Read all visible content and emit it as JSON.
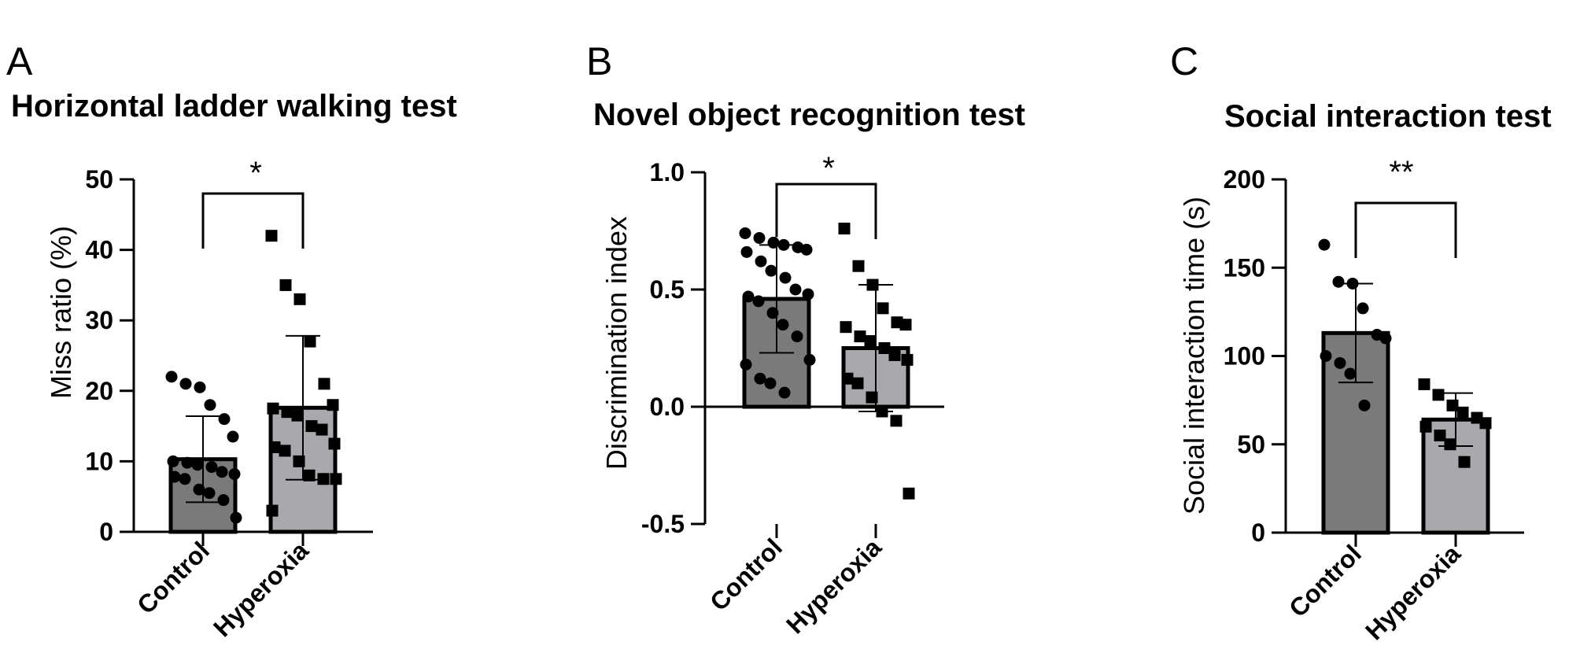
{
  "colors": {
    "control_bar": "#7a7a7a",
    "hyperoxia_bar": "#a8a8ad",
    "ink": "#000000"
  },
  "chart_data": [
    {
      "panel": "A",
      "type": "bar",
      "title": "Horizontal ladder walking test",
      "xlabel": "",
      "ylabel": "Miss ratio (%)",
      "ylim": [
        0,
        50
      ],
      "yticks": [
        0,
        10,
        20,
        30,
        40,
        50
      ],
      "categories": [
        "Control",
        "Hyperoxia"
      ],
      "means": [
        10.3,
        17.6
      ],
      "sd": [
        6.1,
        10.2
      ],
      "marker": [
        "circle",
        "square"
      ],
      "points": [
        [
          22,
          21,
          20.5,
          18,
          16,
          13.5,
          10,
          9.8,
          9.5,
          9.2,
          8.5,
          8.2,
          7.8,
          7.5,
          6,
          5.5,
          4.5,
          2
        ],
        [
          42,
          35,
          33,
          27,
          21,
          18,
          17.5,
          17,
          16.5,
          15,
          14.5,
          12.5,
          12,
          11.5,
          10,
          8,
          7.5,
          7.5,
          3
        ]
      ],
      "significance": "*"
    },
    {
      "panel": "B",
      "type": "bar",
      "title": "Novel object recognition test",
      "xlabel": "",
      "ylabel": "Discrimination index",
      "ylim": [
        -0.5,
        1.0
      ],
      "yticks": [
        -0.5,
        0.0,
        0.5,
        1.0
      ],
      "ytick_labels": [
        "-0.5",
        "0.0",
        "0.5",
        "1.0"
      ],
      "categories": [
        "Control",
        "Hyperoxia"
      ],
      "means": [
        0.46,
        0.25
      ],
      "sd": [
        0.23,
        0.27
      ],
      "marker": [
        "circle",
        "square"
      ],
      "points": [
        [
          0.74,
          0.72,
          0.7,
          0.69,
          0.68,
          0.67,
          0.66,
          0.62,
          0.58,
          0.55,
          0.5,
          0.48,
          0.47,
          0.45,
          0.4,
          0.35,
          0.3,
          0.2,
          0.18,
          0.12,
          0.1,
          0.06
        ],
        [
          0.76,
          0.6,
          0.52,
          0.42,
          0.36,
          0.35,
          0.34,
          0.3,
          0.28,
          0.25,
          0.22,
          0.2,
          0.12,
          0.1,
          0.04,
          -0.02,
          -0.06,
          -0.37
        ]
      ],
      "significance": "*"
    },
    {
      "panel": "C",
      "type": "bar",
      "title": "Social interaction test",
      "xlabel": "",
      "ylabel": "Social interaction time (s)",
      "ylim": [
        0,
        200
      ],
      "yticks": [
        0,
        50,
        100,
        150,
        200
      ],
      "categories": [
        "Control",
        "Hyperoxia"
      ],
      "means": [
        113,
        64
      ],
      "sd": [
        28,
        15
      ],
      "marker": [
        "circle",
        "square"
      ],
      "points": [
        [
          163,
          142,
          141,
          127,
          112,
          110,
          100,
          96,
          90,
          72
        ],
        [
          84,
          78,
          72,
          68,
          65,
          62,
          60,
          55,
          50,
          40
        ]
      ],
      "significance": "**"
    }
  ]
}
